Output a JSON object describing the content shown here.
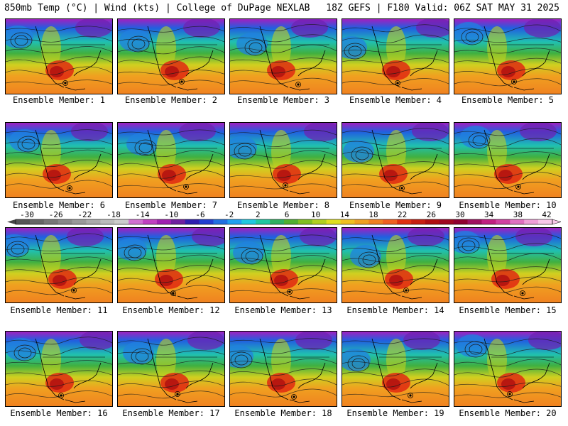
{
  "header": {
    "left": "850mb Temp (°C) | Wind (kts) | College of DuPage NEXLAB",
    "right": "18Z GEFS | F180 Valid: 06Z SAT MAY 31 2025"
  },
  "members": [
    "Ensemble Member: 1",
    "Ensemble Member: 2",
    "Ensemble Member: 3",
    "Ensemble Member: 4",
    "Ensemble Member: 5",
    "Ensemble Member: 6",
    "Ensemble Member: 7",
    "Ensemble Member: 8",
    "Ensemble Member: 9",
    "Ensemble Member: 10",
    "Ensemble Member: 11",
    "Ensemble Member: 12",
    "Ensemble Member: 13",
    "Ensemble Member: 14",
    "Ensemble Member: 15",
    "Ensemble Member: 16",
    "Ensemble Member: 17",
    "Ensemble Member: 18",
    "Ensemble Member: 19",
    "Ensemble Member: 20"
  ],
  "colorbar": {
    "ticks": [
      "-30",
      "-26",
      "-22",
      "-18",
      "-14",
      "-10",
      "-6",
      "-2",
      "2",
      "6",
      "10",
      "14",
      "18",
      "22",
      "26",
      "30",
      "34",
      "38",
      "42"
    ],
    "colors": [
      "#555555",
      "#666666",
      "#777777",
      "#888888",
      "#999999",
      "#aaaaaa",
      "#bbbbbb",
      "#cccccc",
      "#d070d0",
      "#c040c0",
      "#a020b0",
      "#7020a0",
      "#3020b0",
      "#2040d0",
      "#2070e0",
      "#20a0f0",
      "#20c8e0",
      "#20c8a0",
      "#30b060",
      "#50b030",
      "#80c020",
      "#b0d020",
      "#e0e020",
      "#f0c020",
      "#f0a020",
      "#f08020",
      "#f06020",
      "#e03010",
      "#c82010",
      "#b01010",
      "#a00820",
      "#900030",
      "#a01060",
      "#c02080",
      "#d040a0",
      "#e070c0",
      "#f0a0d8",
      "#f8c8e8"
    ]
  }
}
